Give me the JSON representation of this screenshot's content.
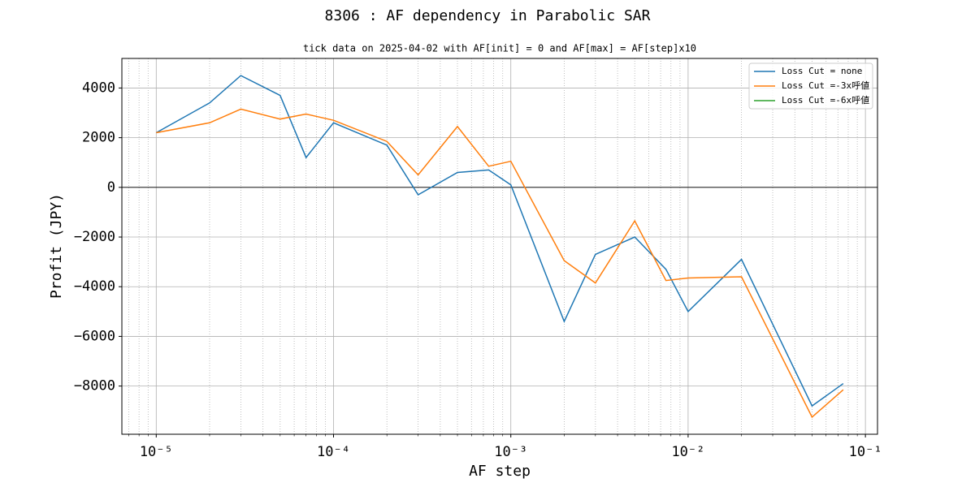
{
  "chart_data": {
    "type": "line",
    "title": "8306 : AF dependency in Parabolic SAR",
    "subtitle": "tick data on 2025-04-02 with AF[init] = 0 and AF[max] = AF[step]x10",
    "x_label": "AF step",
    "y_label": "Profit (JPY)",
    "x": [
      1e-05,
      2e-05,
      3e-05,
      5e-05,
      7e-05,
      0.0001,
      0.0002,
      0.0003,
      0.0005,
      0.00075,
      0.001,
      0.002,
      0.003,
      0.005,
      0.0075,
      0.01,
      0.02,
      0.05,
      0.075
    ],
    "series": [
      {
        "name": "Loss Cut = none",
        "color": "#1f77b4",
        "values": [
          2200,
          3400,
          4500,
          3700,
          1200,
          2600,
          1700,
          -300,
          600,
          700,
          100,
          -5400,
          -2700,
          -2000,
          -3300,
          -5000,
          -2900,
          -8800,
          -7900
        ]
      },
      {
        "name": "Loss Cut =-3x呼値",
        "color": "#ff7f0e",
        "values": [
          2200,
          2600,
          3150,
          2750,
          2950,
          2700,
          1850,
          500,
          2450,
          850,
          1050,
          -2950,
          -3850,
          -1350,
          -3750,
          -3650,
          -3600,
          -9250,
          -8150
        ]
      },
      {
        "name": "Loss Cut =-6x呼値",
        "color": "#2ca02c",
        "values": [
          null,
          null,
          null,
          null,
          null,
          null,
          null,
          null,
          null,
          null,
          null,
          null,
          null,
          null,
          null,
          null,
          null,
          null,
          null
        ]
      }
    ],
    "x_log": true,
    "xlim": [
      6.4e-06,
      0.117
    ],
    "xticks": [
      {
        "value": 1e-05,
        "label": "10⁻⁵"
      },
      {
        "value": 0.0001,
        "label": "10⁻⁴"
      },
      {
        "value": 0.001,
        "label": "10⁻³"
      },
      {
        "value": 0.01,
        "label": "10⁻²"
      },
      {
        "value": 0.1,
        "label": "10⁻¹"
      }
    ],
    "ylim": [
      -9940,
      5190
    ],
    "yticks": [
      {
        "value": -8000,
        "label": "−8000"
      },
      {
        "value": -6000,
        "label": "−6000"
      },
      {
        "value": -4000,
        "label": "−4000"
      },
      {
        "value": -2000,
        "label": "−2000"
      },
      0,
      2000,
      4000
    ],
    "hlines": [
      0
    ],
    "grid": true,
    "minor_grid": true,
    "legend": "upper right"
  }
}
